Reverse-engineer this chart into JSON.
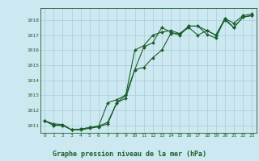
{
  "title": "Graphe pression niveau de la mer (hPa)",
  "bg_color": "#cce8f0",
  "grid_color": "#aaccdd",
  "line_color": "#1a5e2a",
  "marker_color": "#1a5e2a",
  "tick_label_color": "#1a5e2a",
  "spine_color": "#1a5e2a",
  "ylim": [
    1010.5,
    1018.8
  ],
  "xlim": [
    -0.5,
    23.5
  ],
  "yticks": [
    1011,
    1012,
    1013,
    1014,
    1015,
    1016,
    1017,
    1018
  ],
  "xticks": [
    0,
    1,
    2,
    3,
    4,
    5,
    6,
    7,
    8,
    9,
    10,
    11,
    12,
    13,
    14,
    15,
    16,
    17,
    18,
    19,
    20,
    21,
    22,
    23
  ],
  "series1": {
    "x": [
      0,
      1,
      2,
      3,
      4,
      5,
      6,
      7,
      8,
      9,
      10,
      11,
      12,
      13,
      14,
      15,
      16,
      17,
      18,
      19,
      20,
      21,
      22,
      23
    ],
    "y": [
      1011.3,
      1011.0,
      1011.0,
      1010.7,
      1010.7,
      1010.8,
      1010.9,
      1011.1,
      1012.5,
      1012.8,
      1014.7,
      1016.2,
      1016.5,
      1017.5,
      1017.2,
      1017.0,
      1017.6,
      1017.6,
      1017.3,
      1017.0,
      1018.1,
      1017.8,
      1018.3,
      1018.4
    ]
  },
  "series2": {
    "x": [
      0,
      1,
      2,
      3,
      4,
      5,
      6,
      7,
      8,
      9,
      10,
      11,
      12,
      13,
      14,
      15,
      16,
      17,
      18,
      19,
      20,
      21,
      22,
      23
    ],
    "y": [
      1011.3,
      1011.1,
      1011.05,
      1010.7,
      1010.75,
      1010.85,
      1010.95,
      1012.5,
      1012.7,
      1013.0,
      1016.0,
      1016.3,
      1017.0,
      1017.2,
      1017.3,
      1017.1,
      1017.6,
      1017.6,
      1017.05,
      1016.8,
      1018.1,
      1017.5,
      1018.2,
      1018.3
    ]
  },
  "series3": {
    "x": [
      0,
      1,
      2,
      3,
      4,
      5,
      6,
      7,
      8,
      9,
      10,
      11,
      12,
      13,
      14,
      15,
      16,
      17,
      18,
      19,
      20,
      21,
      22,
      23
    ],
    "y": [
      1011.3,
      1011.0,
      1011.0,
      1010.7,
      1010.75,
      1010.85,
      1010.95,
      1011.2,
      1012.5,
      1013.0,
      1014.7,
      1014.85,
      1015.5,
      1016.0,
      1017.1,
      1017.1,
      1017.5,
      1017.0,
      1017.3,
      1017.0,
      1018.0,
      1017.5,
      1018.2,
      1018.3
    ]
  },
  "fig_width": 3.2,
  "fig_height": 2.0,
  "dpi": 100
}
